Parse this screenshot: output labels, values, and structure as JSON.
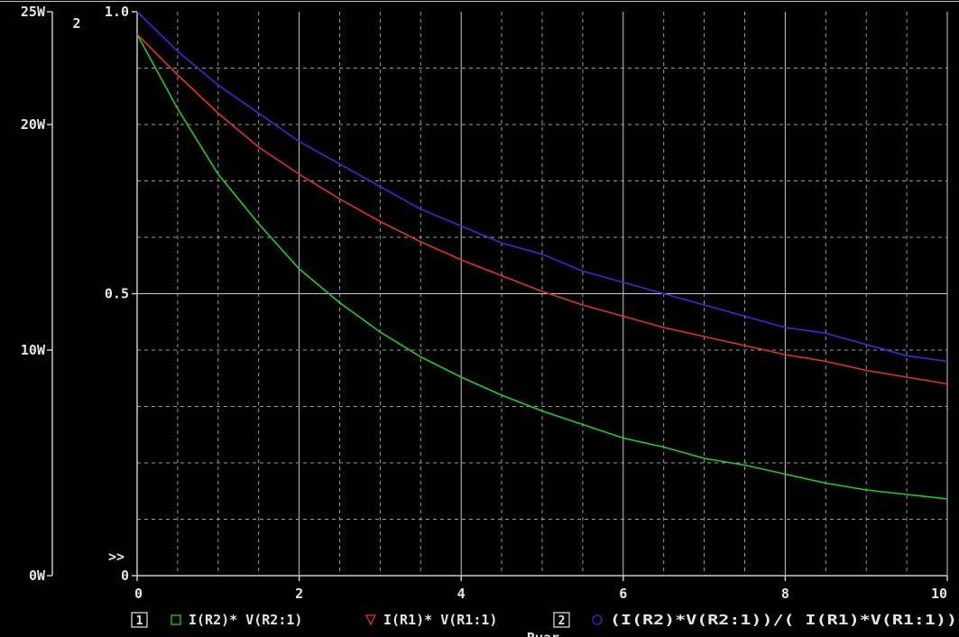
{
  "chart_data": {
    "type": "line",
    "x_ticks": [
      "0",
      "2",
      "4",
      "6",
      "8",
      "10"
    ],
    "xlim": [
      0,
      10
    ],
    "xlabel": "Rvar",
    "axis1": {
      "marker": "1",
      "ticks": [
        "0W",
        "10W",
        "20W",
        "25W"
      ],
      "ylim": [
        0,
        25
      ]
    },
    "axis2": {
      "marker": "2",
      "ticks": [
        "0",
        "0.5",
        "1.0"
      ],
      "ylim": [
        0,
        1
      ]
    },
    "overflow_marker": ">>",
    "series": [
      {
        "name": "I(R2)*  V(R2:1)",
        "axis": 1,
        "color": "#22cc22",
        "symbol": "square",
        "x": [
          0,
          0.5,
          1,
          1.5,
          2,
          2.5,
          3,
          3.5,
          4,
          4.5,
          5,
          5.5,
          6,
          6.5,
          7,
          7.5,
          8,
          8.5,
          9,
          9.5,
          10
        ],
        "values": [
          24.0,
          20.7,
          17.8,
          15.6,
          13.6,
          12.1,
          10.8,
          9.7,
          8.8,
          8.0,
          7.3,
          6.7,
          6.1,
          5.7,
          5.2,
          4.9,
          4.5,
          4.1,
          3.8,
          3.6,
          3.4
        ]
      },
      {
        "name": "I(R1)* V(R1:1)",
        "axis": 1,
        "color": "#e23030",
        "symbol": "triangle",
        "x": [
          0,
          0.5,
          1,
          1.5,
          2,
          2.5,
          3,
          3.5,
          4,
          4.5,
          5,
          5.5,
          6,
          6.5,
          7,
          7.5,
          8,
          8.5,
          9,
          9.5,
          10
        ],
        "values": [
          24.0,
          22.2,
          20.5,
          19.0,
          17.8,
          16.7,
          15.7,
          14.8,
          14.0,
          13.3,
          12.6,
          12.0,
          11.5,
          11.0,
          10.6,
          10.2,
          9.8,
          9.5,
          9.1,
          8.8,
          8.5
        ]
      },
      {
        "name": "(I(R2)*V(R2:1))/( I(R1)*V(R1:1))",
        "axis": 2,
        "color": "#3a2bd6",
        "symbol": "circle",
        "x": [
          0,
          0.5,
          1,
          1.5,
          2,
          2.5,
          3,
          3.5,
          4,
          4.5,
          5,
          5.5,
          6,
          6.5,
          7,
          7.5,
          8,
          8.5,
          9,
          9.5,
          10
        ],
        "values": [
          1.0,
          0.93,
          0.87,
          0.82,
          0.77,
          0.73,
          0.69,
          0.65,
          0.62,
          0.59,
          0.57,
          0.54,
          0.52,
          0.5,
          0.48,
          0.46,
          0.44,
          0.43,
          0.41,
          0.39,
          0.38
        ]
      }
    ],
    "grid": true,
    "colors": {
      "background": "#000000",
      "axes": "#c8c8c8",
      "grid": "#9a9a9a",
      "text": "#e6e6e6"
    }
  }
}
